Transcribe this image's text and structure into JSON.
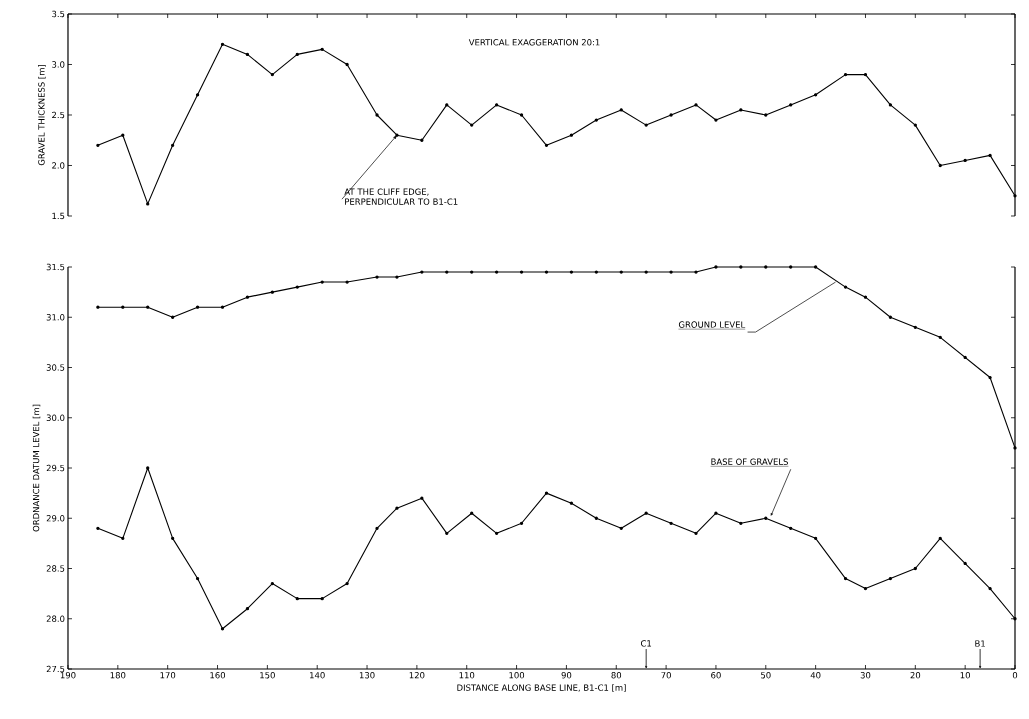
{
  "chart_data": [
    {
      "type": "line",
      "ylabel": "GRAVEL THICKNESS [m]",
      "annotations": [
        "VERTICAL EXAGGERATION 20:1",
        {
          "text": "AT THE CLIFF EDGE, PERPENDICULAR TO B1-C1",
          "x": 124,
          "y": 2.3
        }
      ],
      "x": [
        184,
        179,
        174,
        169,
        164,
        159,
        154,
        149,
        144,
        139,
        134,
        128,
        124,
        119,
        114,
        109,
        104,
        99,
        94,
        89,
        84,
        79,
        74,
        69,
        64,
        60,
        55,
        50,
        45,
        40,
        34,
        30,
        25,
        20,
        15,
        10,
        5,
        0
      ],
      "values": [
        2.2,
        2.3,
        1.62,
        2.2,
        2.7,
        3.2,
        3.1,
        2.9,
        3.1,
        3.15,
        3.0,
        2.5,
        2.3,
        2.25,
        2.6,
        2.4,
        2.6,
        2.5,
        2.2,
        2.3,
        2.45,
        2.55,
        2.4,
        2.5,
        2.6,
        2.45,
        2.55,
        2.5,
        2.6,
        2.7,
        2.9,
        2.9,
        2.6,
        2.4,
        2.0,
        2.05,
        2.1,
        1.7
      ],
      "color": "#000000",
      "marker": "circle",
      "xlim": [
        190,
        0
      ],
      "xticks": [
        190,
        180,
        170,
        160,
        150,
        140,
        130,
        120,
        110,
        100,
        90,
        80,
        70,
        60,
        50,
        40,
        30,
        20,
        10,
        0
      ],
      "ylim": [
        1.5,
        3.5
      ],
      "yticks": [
        {
          "value": 1.5,
          "label": "1.5"
        },
        {
          "value": 2.0,
          "label": "2.0"
        },
        {
          "value": 2.5,
          "label": "2.5"
        },
        {
          "value": 3.0,
          "label": "3.0"
        },
        {
          "value": 3.5,
          "label": "3.5"
        }
      ],
      "tick_labels": "y"
    },
    {
      "type": "line",
      "ylabel": "ORDNANCE DATUM LEVEL [m]",
      "xlabel": "DISTANCE ALONG BASE LINE, B1-C1 [m]",
      "annotations": [
        {
          "text": "GROUND LEVEL",
          "x": 36,
          "y": 31.35
        },
        {
          "text": "BASE OF GRAVELS",
          "x": 49,
          "y": 29.02
        },
        {
          "text": "C1",
          "x": 74,
          "y": 27.5
        },
        {
          "text": "B1",
          "x": 7,
          "y": 27.5
        }
      ],
      "x": [
        184,
        179,
        174,
        169,
        164,
        159,
        154,
        149,
        144,
        139,
        134,
        128,
        124,
        119,
        114,
        109,
        104,
        99,
        94,
        89,
        84,
        79,
        74,
        69,
        64,
        60,
        55,
        50,
        45,
        40,
        34,
        30,
        25,
        20,
        15,
        10,
        5,
        0
      ],
      "series": [
        {
          "color": "#000000",
          "values": [
            31.1,
            31.1,
            31.1,
            31.0,
            31.1,
            31.1,
            31.2,
            31.25,
            31.3,
            31.35,
            31.35,
            31.4,
            31.4,
            31.45,
            31.45,
            31.45,
            31.45,
            31.45,
            31.45,
            31.45,
            31.45,
            31.45,
            31.45,
            31.45,
            31.45,
            31.5,
            31.5,
            31.5,
            31.5,
            31.5,
            31.3,
            31.2,
            31.0,
            30.9,
            30.8,
            30.6,
            30.4,
            29.7
          ]
        },
        {
          "color": "#000000",
          "values": [
            28.9,
            28.8,
            29.5,
            28.8,
            28.4,
            27.9,
            28.1,
            28.35,
            28.2,
            28.2,
            28.35,
            28.9,
            29.1,
            29.2,
            28.85,
            29.05,
            28.85,
            28.95,
            29.25,
            29.15,
            29.0,
            28.9,
            29.05,
            28.95,
            28.85,
            29.05,
            28.95,
            29.0,
            28.9,
            28.8,
            28.4,
            28.3,
            28.4,
            28.5,
            28.8,
            28.55,
            28.3,
            28.0
          ]
        }
      ],
      "marker": "circle",
      "xlim": [
        190,
        0
      ],
      "xticks": [
        190,
        180,
        170,
        160,
        150,
        140,
        130,
        120,
        110,
        100,
        90,
        80,
        70,
        60,
        50,
        40,
        30,
        20,
        10,
        0
      ],
      "ylim": [
        27.5,
        31.5
      ],
      "yticks": [
        {
          "value": 27.5,
          "label": "27.5"
        },
        {
          "value": 28.0,
          "label": "28.0"
        },
        {
          "value": 28.5,
          "label": "28.5"
        },
        {
          "value": 29.0,
          "label": "29.0"
        },
        {
          "value": 29.5,
          "label": "29.5"
        },
        {
          "value": 30.0,
          "label": "30.0"
        },
        {
          "value": 30.5,
          "label": "30.5"
        },
        {
          "value": 31.0,
          "label": "31.0"
        },
        {
          "value": 31.5,
          "label": "31.5"
        }
      ]
    }
  ]
}
